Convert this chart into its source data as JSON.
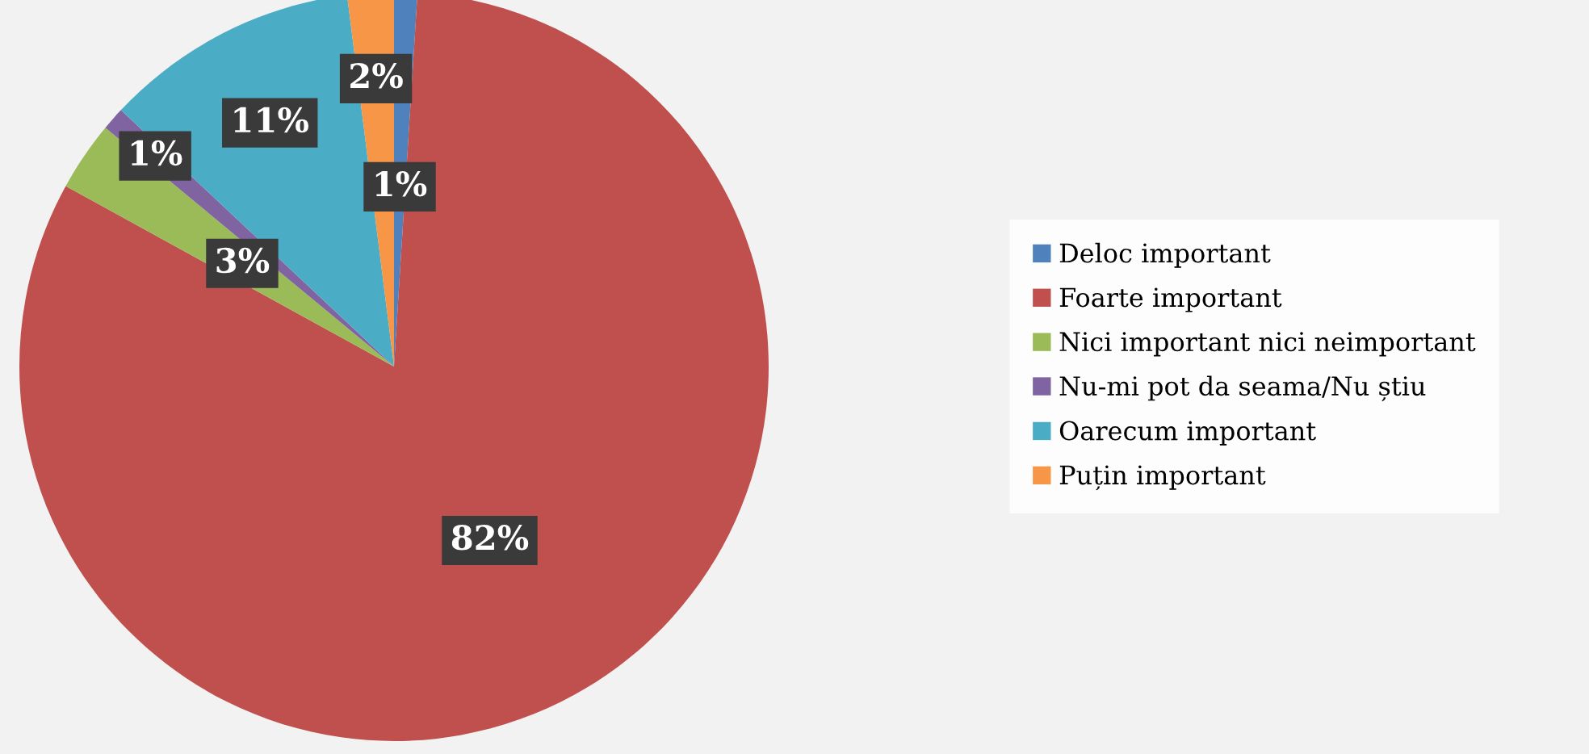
{
  "chart_data": {
    "type": "pie",
    "categories": [
      "Deloc important",
      "Foarte important",
      "Nici important nici neimportant",
      "Nu-mi pot da seama/Nu știu",
      "Oarecum important",
      "Puțin important"
    ],
    "values": [
      1,
      82,
      3,
      1,
      11,
      2
    ],
    "colors": [
      "#4f81bd",
      "#c0504d",
      "#9bbb59",
      "#8064a2",
      "#4bacc6",
      "#f79646"
    ],
    "value_labels": [
      "1%",
      "82%",
      "3%",
      "1%",
      "11%",
      "2%"
    ],
    "legend": "right"
  }
}
